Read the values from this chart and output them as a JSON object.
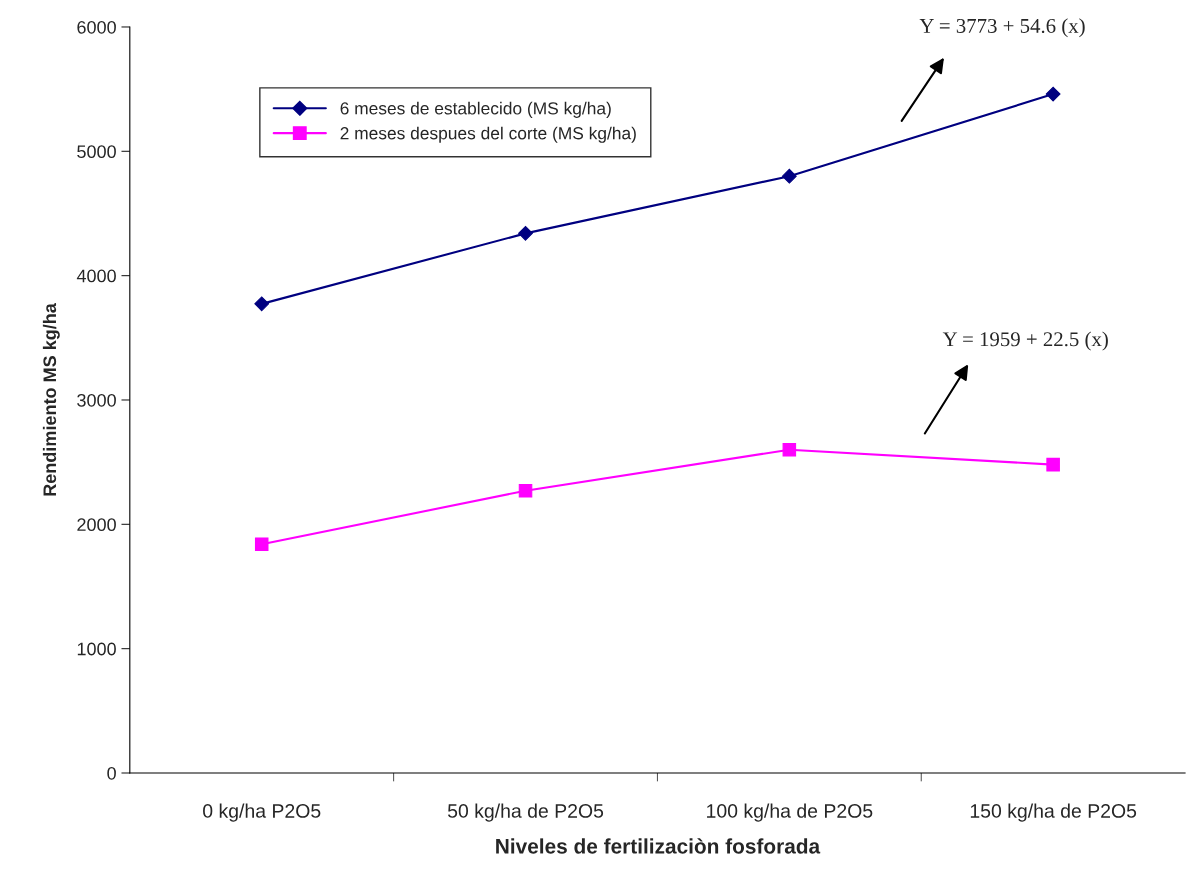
{
  "chart_data": {
    "type": "line",
    "xlabel": "Niveles de fertilizaciòn fosforada",
    "ylabel": "Rendimiento MS kg/ha",
    "categories": [
      "0 kg/ha P2O5",
      "50 kg/ha de P2O5",
      "100 kg/ha de P2O5",
      "150 kg/ha de P2O5"
    ],
    "series": [
      {
        "name": "6 meses de establecido (MS kg/ha)",
        "color": "#000080",
        "marker": "diamond",
        "values": [
          3773,
          4340,
          4800,
          5460
        ]
      },
      {
        "name": "2 meses despues del corte (MS kg/ha)",
        "color": "#ff00ff",
        "marker": "square",
        "values": [
          1840,
          2270,
          2600,
          2480
        ]
      }
    ],
    "ylim": [
      0,
      6000
    ],
    "yticks": [
      0,
      1000,
      2000,
      3000,
      4000,
      5000,
      6000
    ],
    "grid": false,
    "legend": "top left",
    "line_style": "solid",
    "annotations": [
      "Y = 3773 + 54.6 (x)",
      "Y = 1959 + 22.5 (x)"
    ]
  }
}
